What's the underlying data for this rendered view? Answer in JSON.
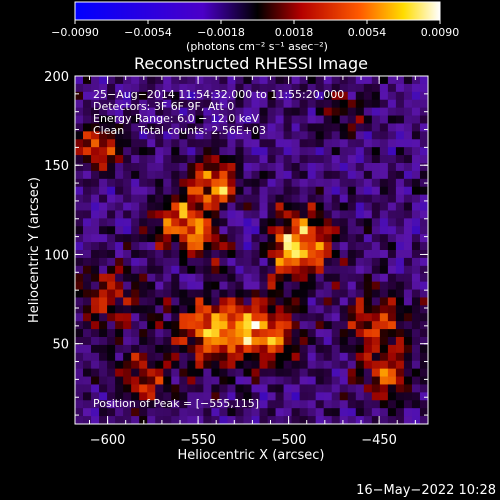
{
  "colorbar": {
    "ticks": [
      "−0.0090",
      "−0.0054",
      "−0.0018",
      "0.0018",
      "0.0054",
      "0.0090"
    ],
    "unit_label": "(photons cm⁻² s⁻¹ asec⁻²)",
    "range": [
      -0.009,
      0.009
    ]
  },
  "chart_data": {
    "type": "heatmap",
    "title": "Reconstructed RHESSI Image",
    "xlabel": "Heliocentric X (arcsec)",
    "ylabel": "Heliocentric Y (arcsec)",
    "xlim": [
      -618,
      -423
    ],
    "ylim": [
      5,
      200
    ],
    "x_ticks": [
      -600,
      -550,
      -500,
      -450
    ],
    "y_ticks": [
      50,
      100,
      150,
      200
    ],
    "x_tick_labels": [
      "−600",
      "−550",
      "−500",
      "−450"
    ],
    "y_tick_labels": [
      "50",
      "100",
      "150",
      "200"
    ],
    "annotations": [
      "25−Aug−2014 11:54:32.000 to 11:55:20.000",
      "Detectors: 3F 6F 9F, Att 0",
      "Energy Range: 6.0 − 12.0 keV",
      "Clean    Total counts: 2.56E+03"
    ],
    "peak_label": "Position of Peak = [−555,115]",
    "peak": [
      -555,
      115
    ]
  },
  "footer": {
    "timestamp": "16−May−2022 10:28"
  }
}
